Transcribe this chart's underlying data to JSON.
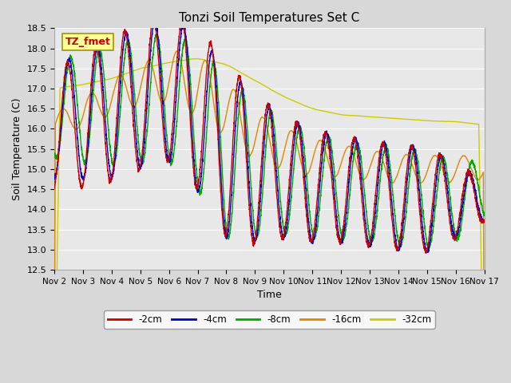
{
  "title": "Tonzi Soil Temperatures Set C",
  "xlabel": "Time",
  "ylabel": "Soil Temperature (C)",
  "ylim": [
    12.5,
    18.5
  ],
  "xlim_days": [
    2,
    17
  ],
  "x_ticks": [
    2,
    3,
    4,
    5,
    6,
    7,
    8,
    9,
    10,
    11,
    12,
    13,
    14,
    15,
    16,
    17
  ],
  "x_tick_labels": [
    "Nov 2",
    "Nov 3",
    "Nov 4",
    "Nov 5",
    "Nov 6",
    "Nov 7",
    "Nov 8",
    "Nov 9",
    "Nov 10",
    "Nov 11",
    "Nov 12",
    "Nov 13",
    "Nov 14",
    "Nov 15",
    "Nov 16",
    "Nov 17"
  ],
  "y_ticks": [
    12.5,
    13.0,
    13.5,
    14.0,
    14.5,
    15.0,
    15.5,
    16.0,
    16.5,
    17.0,
    17.5,
    18.0,
    18.5
  ],
  "series_colors": [
    "#cc0000",
    "#0000cc",
    "#00aa00",
    "#dd8800",
    "#cccc00"
  ],
  "series_labels": [
    "-2cm",
    "-4cm",
    "-8cm",
    "-16cm",
    "-32cm"
  ],
  "annotation_text": "TZ_fmet",
  "annotation_color": "#cc0000",
  "annotation_bg": "#ffff99",
  "annotation_border": "#999900",
  "plot_bg": "#e8e8e8",
  "grid_color": "#ffffff",
  "line_width": 1.0,
  "fig_bg": "#d8d8d8"
}
